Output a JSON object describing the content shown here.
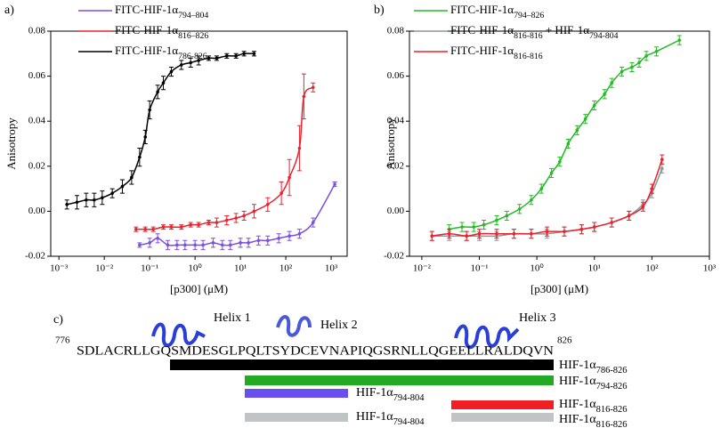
{
  "chart_data": [
    {
      "type": "scatter",
      "panel_label": "a)",
      "xlabel": "[p300] (μM)",
      "ylabel": "Anisotropy",
      "xlog": true,
      "xlim": [
        0.00066,
        2250
      ],
      "xticks": [
        {
          "value": 0.001,
          "label": "10⁻³"
        },
        {
          "value": 0.01,
          "label": "10⁻²"
        },
        {
          "value": 0.1,
          "label": "10⁻¹"
        },
        {
          "value": 1,
          "label": "10⁰"
        },
        {
          "value": 10,
          "label": "10¹"
        },
        {
          "value": 100,
          "label": "10²"
        },
        {
          "value": 1000,
          "label": "10³"
        }
      ],
      "ylim": [
        -0.02,
        0.08
      ],
      "yticks": [
        -0.02,
        {
          "value": 0,
          "label": "0.00"
        },
        0.02,
        0.04,
        0.06,
        0.08
      ],
      "legend": "upper left",
      "series": [
        {
          "name": "FITC-HIF-1α794–804",
          "color": "#7b4fe0",
          "x": [
            0.06,
            0.1,
            0.15,
            0.25,
            0.4,
            0.6,
            1,
            1.5,
            2.5,
            4,
            6,
            10,
            15,
            25,
            40,
            70,
            120,
            200,
            400,
            1200
          ],
          "values": [
            -0.015,
            -0.014,
            -0.012,
            -0.015,
            -0.015,
            -0.015,
            -0.015,
            -0.015,
            -0.014,
            -0.015,
            -0.015,
            -0.014,
            -0.014,
            -0.013,
            -0.013,
            -0.012,
            -0.011,
            -0.01,
            -0.005,
            0.012
          ],
          "errors": [
            0.001,
            0.002,
            0.002,
            0.002,
            0.002,
            0.002,
            0.002,
            0.002,
            0.002,
            0.002,
            0.002,
            0.002,
            0.002,
            0.002,
            0.002,
            0.002,
            0.002,
            0.002,
            0.002,
            0.001
          ]
        },
        {
          "name": "FITC-HIF-1α816–826",
          "color": "#e8232f",
          "x": [
            0.05,
            0.08,
            0.12,
            0.2,
            0.3,
            0.5,
            0.8,
            1.2,
            2,
            3,
            5,
            8,
            12,
            20,
            40,
            80,
            120,
            200,
            250,
            400
          ],
          "values": [
            -0.008,
            -0.008,
            -0.008,
            -0.007,
            -0.007,
            -0.007,
            -0.006,
            -0.006,
            -0.005,
            -0.005,
            -0.004,
            -0.003,
            -0.002,
            0.0,
            0.003,
            0.008,
            0.015,
            0.028,
            0.051,
            0.055
          ],
          "errors": [
            0.001,
            0.001,
            0.001,
            0.001,
            0.001,
            0.001,
            0.001,
            0.001,
            0.001,
            0.002,
            0.002,
            0.002,
            0.002,
            0.003,
            0.003,
            0.005,
            0.008,
            0.01,
            0.01,
            0.002
          ]
        },
        {
          "name": "FITC-HIF-1α786-826",
          "color": "#000000",
          "x": [
            0.0015,
            0.0025,
            0.004,
            0.006,
            0.009,
            0.015,
            0.025,
            0.04,
            0.06,
            0.08,
            0.1,
            0.15,
            0.2,
            0.3,
            0.5,
            0.8,
            1.2,
            2,
            3,
            5,
            8,
            12,
            20
          ],
          "values": [
            0.003,
            0.004,
            0.005,
            0.005,
            0.006,
            0.008,
            0.011,
            0.015,
            0.024,
            0.033,
            0.045,
            0.053,
            0.057,
            0.062,
            0.065,
            0.066,
            0.067,
            0.068,
            0.068,
            0.069,
            0.069,
            0.07,
            0.07
          ],
          "errors": [
            0.002,
            0.003,
            0.003,
            0.003,
            0.003,
            0.002,
            0.003,
            0.003,
            0.004,
            0.003,
            0.004,
            0.003,
            0.003,
            0.002,
            0.002,
            0.002,
            0.002,
            0.001,
            0.001,
            0.001,
            0.001,
            0.001,
            0.001
          ]
        }
      ]
    },
    {
      "type": "scatter",
      "panel_label": "b)",
      "xlabel": "[p300] (μM)",
      "ylabel": "Anisotropy",
      "xlog": true,
      "xlim": [
        0.0061,
        1000
      ],
      "xticks": [
        {
          "value": 0.01,
          "label": "10⁻²"
        },
        {
          "value": 0.1,
          "label": "10⁻¹"
        },
        {
          "value": 1,
          "label": "10⁰"
        },
        {
          "value": 10,
          "label": "10¹"
        },
        {
          "value": 100,
          "label": "10²"
        },
        {
          "value": 1000,
          "label": "10³"
        }
      ],
      "ylim": [
        -0.02,
        0.08
      ],
      "yticks": [
        -0.02,
        {
          "value": 0,
          "label": "0.00"
        },
        0.02,
        0.04,
        0.06,
        0.08
      ],
      "legend": "upper left",
      "series": [
        {
          "name": "FITC-HIF-1α794–826",
          "color": "#22bb22",
          "x": [
            0.03,
            0.05,
            0.08,
            0.12,
            0.2,
            0.3,
            0.5,
            0.8,
            1.2,
            1.8,
            2.5,
            3.5,
            5,
            7,
            10,
            15,
            20,
            30,
            45,
            60,
            80,
            120,
            300
          ],
          "values": [
            -0.008,
            -0.007,
            -0.007,
            -0.006,
            -0.004,
            -0.002,
            0.001,
            0.005,
            0.01,
            0.017,
            0.022,
            0.03,
            0.036,
            0.041,
            0.047,
            0.052,
            0.057,
            0.062,
            0.064,
            0.066,
            0.069,
            0.071,
            0.076
          ],
          "errors": [
            0.002,
            0.002,
            0.002,
            0.002,
            0.002,
            0.002,
            0.002,
            0.002,
            0.002,
            0.002,
            0.002,
            0.002,
            0.002,
            0.002,
            0.002,
            0.002,
            0.002,
            0.002,
            0.002,
            0.002,
            0.002,
            0.002,
            0.002
          ]
        },
        {
          "name": "FITC-HIF-1α816-816 + HIF-1α794-804",
          "color": "#8a9a9a",
          "x": [
            0.015,
            0.03,
            0.06,
            0.1,
            0.2,
            0.4,
            0.8,
            1.5,
            3,
            6,
            10,
            20,
            40,
            70,
            100,
            150
          ],
          "values": [
            -0.011,
            -0.011,
            -0.011,
            -0.011,
            -0.011,
            -0.01,
            -0.01,
            -0.01,
            -0.009,
            -0.008,
            -0.007,
            -0.005,
            -0.002,
            0.003,
            0.008,
            0.019
          ],
          "errors": [
            0.002,
            0.002,
            0.002,
            0.002,
            0.002,
            0.002,
            0.002,
            0.002,
            0.002,
            0.002,
            0.002,
            0.002,
            0.002,
            0.002,
            0.002,
            0.002
          ]
        },
        {
          "name": "FITC-HIF-1α816-816",
          "color": "#e8232f",
          "x": [
            0.015,
            0.03,
            0.06,
            0.1,
            0.2,
            0.4,
            0.8,
            1.5,
            3,
            6,
            10,
            20,
            40,
            70,
            100,
            150
          ],
          "values": [
            -0.011,
            -0.01,
            -0.011,
            -0.01,
            -0.01,
            -0.01,
            -0.01,
            -0.009,
            -0.009,
            -0.008,
            -0.007,
            -0.005,
            -0.002,
            0.002,
            0.01,
            0.023
          ],
          "errors": [
            0.002,
            0.002,
            0.002,
            0.002,
            0.002,
            0.002,
            0.002,
            0.002,
            0.002,
            0.002,
            0.002,
            0.002,
            0.002,
            0.002,
            0.002,
            0.002
          ]
        }
      ]
    }
  ],
  "diagram": {
    "panel_label": "c)",
    "sequence_start": "776",
    "sequence": "SDLACRLLGQSMDESGLPQLTSYDCEVNAPIQGSRNLLQGEELLRALDQVN",
    "sequence_end": "826",
    "helices": [
      "Helix 1",
      "Helix 2",
      "Helix 3"
    ],
    "constructs": [
      "HIF-1α786-826",
      "HIF-1α794-826",
      "HIF-1α794-804",
      "HIF-1α816-826",
      "HIF-1α794-804",
      "HIF-1α816-826"
    ]
  }
}
